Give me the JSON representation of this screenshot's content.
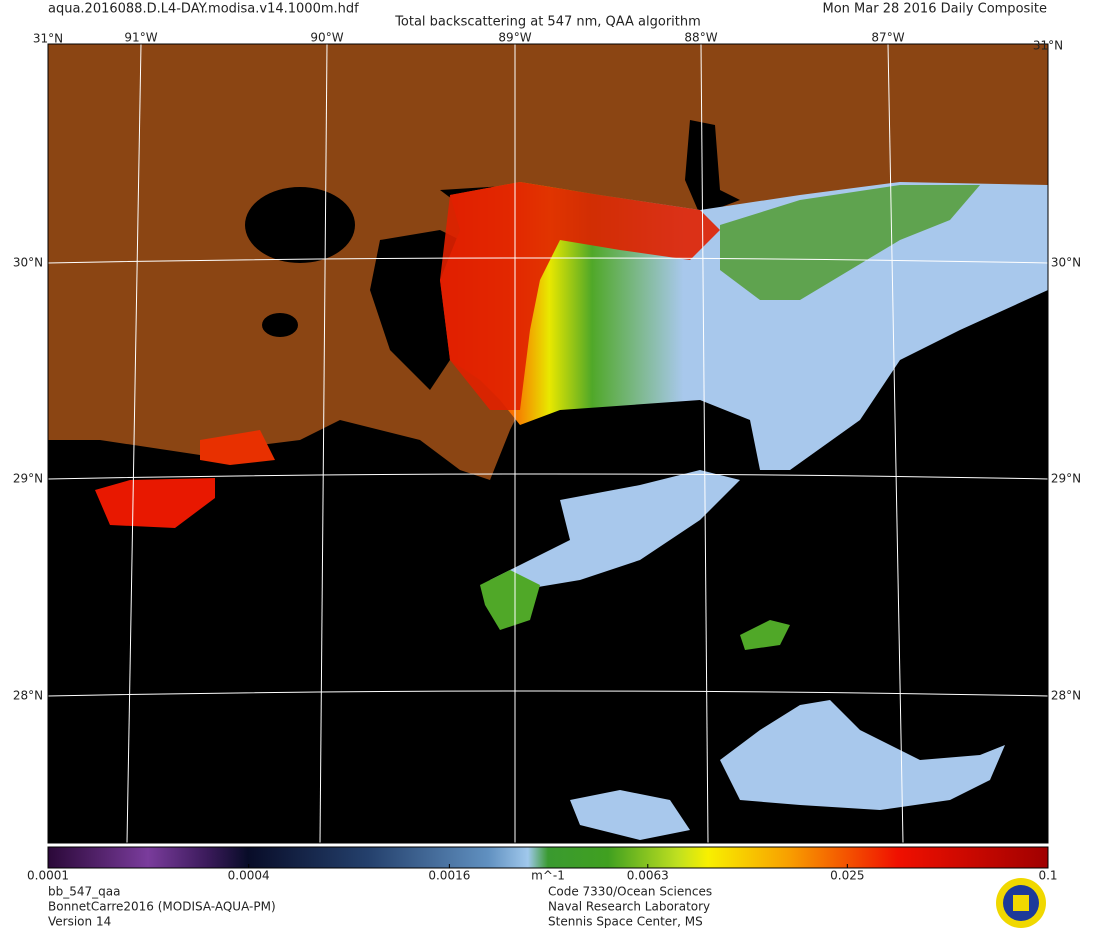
{
  "header": {
    "file": "aqua.2016088.D.L4-DAY.modisa.v14.1000m.hdf",
    "title": "Total backscattering at 547 nm, QAA algorithm",
    "date": "Mon Mar 28 2016 Daily Composite"
  },
  "map": {
    "lat_labels": [
      "31°N",
      "30°N",
      "29°N",
      "28°N"
    ],
    "lon_labels": [
      "91°W",
      "90°W",
      "89°W",
      "88°W",
      "87°W"
    ]
  },
  "colorbar": {
    "ticks": [
      0.0001,
      0.0004,
      0.0016,
      0.0063,
      0.025,
      0.1
    ],
    "unit": "m^-1",
    "scale": "log"
  },
  "footer": {
    "left": [
      "bb_547_qaa",
      "BonnetCarre2016 (MODISA-AQUA-PM)",
      "Version 14"
    ],
    "center": [
      "Code 7330/Ocean Sciences",
      "Naval Research Laboratory",
      "Stennis Space Center, MS"
    ]
  }
}
